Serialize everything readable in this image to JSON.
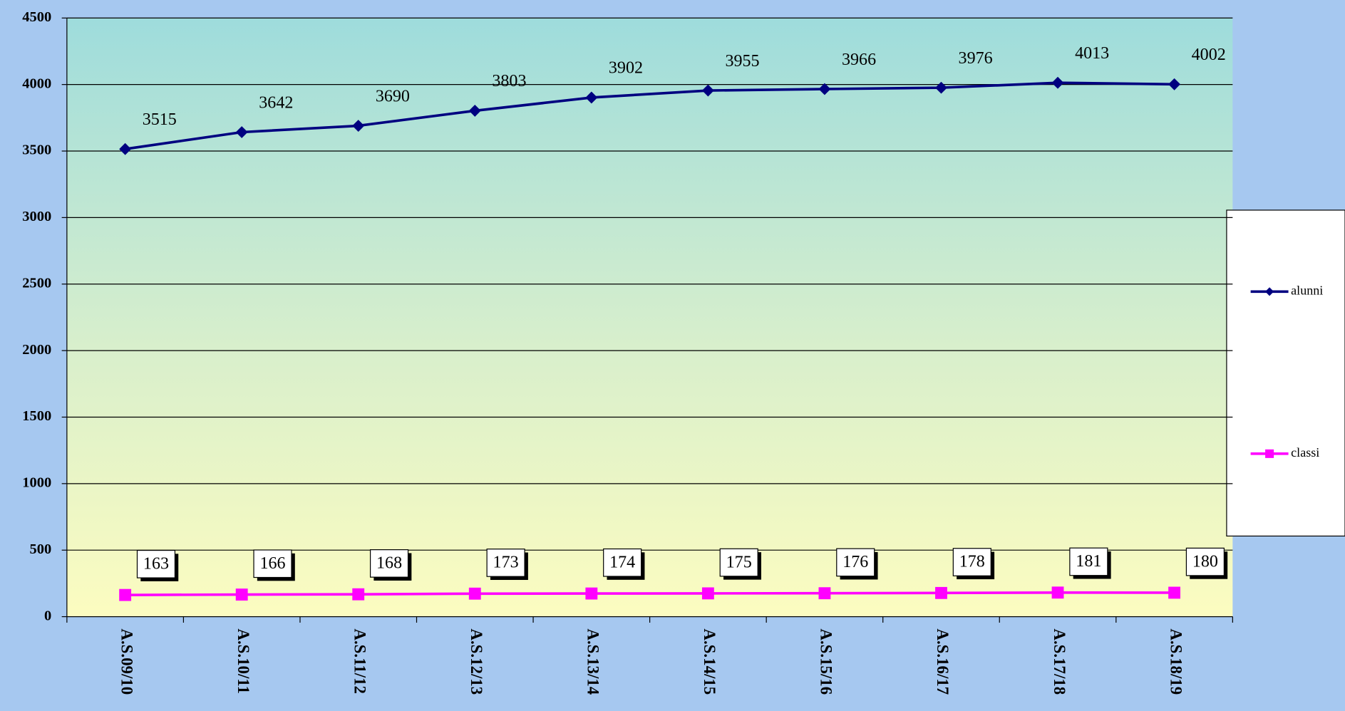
{
  "chart_data": {
    "type": "line",
    "categories": [
      "A.S.09/10",
      "A.S.10/11",
      "A.S.11/12",
      "A.S.12/13",
      "A.S.13/14",
      "A.S.14/15",
      "A.S.15/16",
      "A.S.16/17",
      "A.S.17/18",
      "A.S.18/19"
    ],
    "series": [
      {
        "name": "alunni",
        "color": "#000080",
        "values": [
          3515,
          3642,
          3690,
          3803,
          3902,
          3955,
          3966,
          3976,
          4013,
          4002
        ]
      },
      {
        "name": "classi",
        "color": "#ff00ff",
        "values": [
          163,
          166,
          168,
          173,
          174,
          175,
          176,
          178,
          181,
          180
        ]
      }
    ],
    "ylim": [
      0,
      4500
    ],
    "yticks": [
      0,
      500,
      1000,
      1500,
      2000,
      2500,
      3000,
      3500,
      4000,
      4500
    ],
    "grid": true,
    "legend": "right"
  }
}
